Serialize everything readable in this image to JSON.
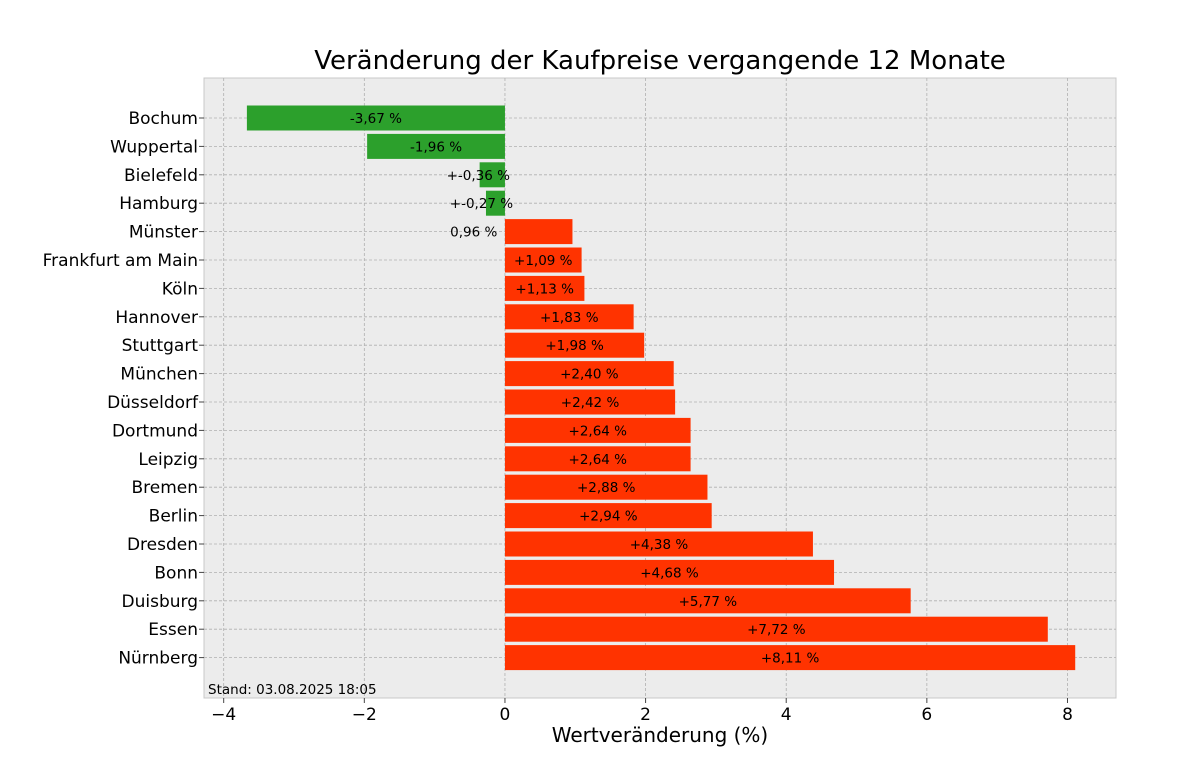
{
  "chart_data": {
    "type": "bar",
    "orientation": "horizontal",
    "title": "Veränderung der Kaufpreise vergangende 12 Monate",
    "xlabel": "Wertveränderung (%)",
    "ylabel": "",
    "xlim": [
      -4.28,
      8.69
    ],
    "xticks": [
      -4,
      -2,
      0,
      2,
      4,
      6,
      8
    ],
    "xtick_labels": [
      "−4",
      "−2",
      "0",
      "2",
      "4",
      "6",
      "8"
    ],
    "grid": true,
    "categories": [
      "Bochum",
      "Wuppertal",
      "Bielefeld",
      "Hamburg",
      "Münster",
      "Frankfurt am Main",
      "Köln",
      "Hannover",
      "Stuttgart",
      "München",
      "Düsseldorf",
      "Dortmund",
      "Leipzig",
      "Bremen",
      "Berlin",
      "Dresden",
      "Bonn",
      "Duisburg",
      "Essen",
      "Nürnberg"
    ],
    "values": [
      -3.67,
      -1.96,
      -0.36,
      -0.27,
      0.96,
      1.09,
      1.13,
      1.83,
      1.98,
      2.4,
      2.42,
      2.64,
      2.64,
      2.88,
      2.94,
      4.38,
      4.68,
      5.77,
      7.72,
      8.11
    ],
    "labels": [
      "-3,67 %",
      "-1,96 %",
      "+-0,36 %",
      "+-0,27 %",
      "0,96 %",
      "+1,09 %",
      "+1,13 %",
      "+1,83 %",
      "+1,98 %",
      "+2,40 %",
      "+2,42 %",
      "+2,64 %",
      "+2,64 %",
      "+2,88 %",
      "+2,94 %",
      "+4,38 %",
      "+4,68 %",
      "+5,77 %",
      "+7,72 %",
      "+8,11 %"
    ],
    "colors": {
      "negative": "#2ca02c",
      "positive": "#ff3300",
      "background": "#ececec"
    },
    "annotation": "Stand: 03.08.2025 18:05"
  }
}
